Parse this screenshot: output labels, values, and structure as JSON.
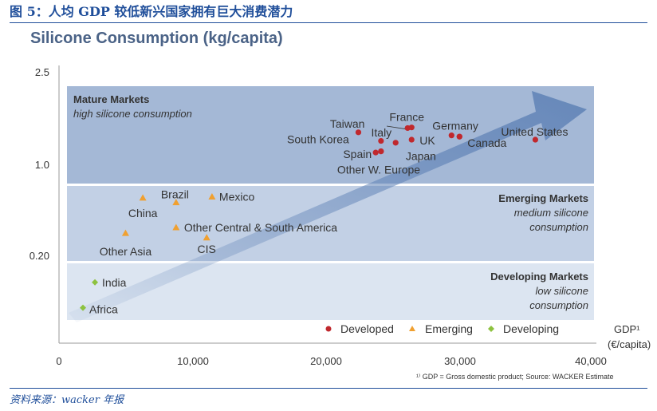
{
  "figure": {
    "title": "图 5：人均 GDP 较低新兴国家拥有巨大消费潜力",
    "source": "资料来源：wacker 年报",
    "footnote": "¹⁾ GDP = Gross domestic product; Source: WACKER Estimate"
  },
  "colors": {
    "developed": "#c0282d",
    "emerging": "#f0a030",
    "developing": "#8dc23f",
    "mature_band": "#a4b8d6",
    "emerging_band": "#c2d0e5",
    "developing_band": "#dce5f1",
    "arrow": "#5f82b6"
  },
  "chart_data": {
    "type": "scatter",
    "title": "Silicone Consumption (kg/capita)",
    "xlabel": "GDP¹ (€/capita)",
    "ylabel": "",
    "xlim": [
      0,
      40000
    ],
    "x_ticks": [
      "0",
      "10,000",
      "20,000",
      "30,000",
      "40,000"
    ],
    "y_ticks": [
      "2.5",
      "1.0",
      "0.20"
    ],
    "legend_position": "bottom-right",
    "legend": [
      "Developed",
      "Emerging",
      "Developing"
    ],
    "bands": [
      {
        "id": "mature",
        "title": "Mature Markets",
        "lines": [
          "high silicone consumption"
        ]
      },
      {
        "id": "emerging",
        "title": "Emerging Markets",
        "lines": [
          "medium silicone",
          "consumption"
        ]
      },
      {
        "id": "developing",
        "title": "Developing Markets",
        "lines": [
          "low silicone",
          "consumption"
        ]
      }
    ],
    "series": [
      {
        "name": "Developed",
        "marker": "circle",
        "points": [
          {
            "label": "Taiwan",
            "x": 22500,
            "y": 1.55
          },
          {
            "label": "France",
            "x": 26200,
            "y": 1.62
          },
          {
            "label": "",
            "x": 26500,
            "y": 1.63
          },
          {
            "label": "Germany",
            "x": 29500,
            "y": 1.5
          },
          {
            "label": "",
            "x": 30100,
            "y": 1.48
          },
          {
            "label": "United States",
            "x": 35800,
            "y": 1.43
          },
          {
            "label": "South Korea",
            "x": 24200,
            "y": 1.41
          },
          {
            "label": "Italy",
            "x": 25300,
            "y": 1.38
          },
          {
            "label": "UK",
            "x": 26500,
            "y": 1.43
          },
          {
            "label": "Canada",
            "x": 30100,
            "y": 1.48
          },
          {
            "label": "Spain",
            "x": 23800,
            "y": 1.22
          },
          {
            "label": "Japan",
            "x": 24200,
            "y": 1.24
          },
          {
            "label": "Other W. Europe",
            "x": 24200,
            "y": 1.24
          }
        ]
      },
      {
        "name": "Emerging",
        "marker": "triangle",
        "points": [
          {
            "label": "China",
            "x": 6300,
            "y": 0.72
          },
          {
            "label": "Brazil",
            "x": 8800,
            "y": 0.68
          },
          {
            "label": "Mexico",
            "x": 11500,
            "y": 0.73
          },
          {
            "label": "Other Central & South America",
            "x": 8800,
            "y": 0.46
          },
          {
            "label": "Other Asia",
            "x": 5000,
            "y": 0.41
          },
          {
            "label": "CIS",
            "x": 11100,
            "y": 0.37
          }
        ]
      },
      {
        "name": "Developing",
        "marker": "diamond",
        "points": [
          {
            "label": "India",
            "x": 2700,
            "y": 0.14
          },
          {
            "label": "Africa",
            "x": 1800,
            "y": 0.08
          }
        ]
      }
    ]
  }
}
